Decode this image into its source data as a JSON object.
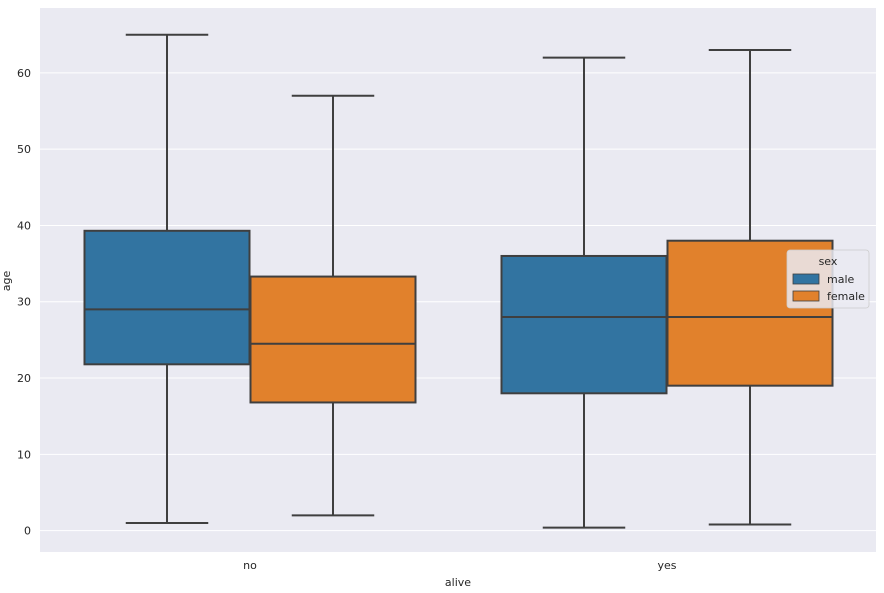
{
  "chart_data": {
    "type": "box",
    "title": "",
    "xlabel": "alive",
    "ylabel": "age",
    "categories": [
      "no",
      "yes"
    ],
    "ylim": [
      -2.8,
      68.5
    ],
    "yticks": [
      0,
      10,
      20,
      30,
      40,
      50,
      60
    ],
    "grid": true,
    "legend": {
      "title": "sex",
      "placement": "right"
    },
    "series": [
      {
        "name": "male",
        "color": "#3274a1",
        "boxes": [
          {
            "category": "no",
            "whislo": 1,
            "q1": 21.8,
            "median": 29,
            "q3": 39.3,
            "whishi": 65
          },
          {
            "category": "yes",
            "whislo": 0.4,
            "q1": 18,
            "median": 28,
            "q3": 36,
            "whishi": 62
          }
        ]
      },
      {
        "name": "female",
        "color": "#e1812c",
        "boxes": [
          {
            "category": "no",
            "whislo": 2,
            "q1": 16.8,
            "median": 24.5,
            "q3": 33.3,
            "whishi": 57
          },
          {
            "category": "yes",
            "whislo": 0.8,
            "q1": 19,
            "median": 28,
            "q3": 38,
            "whishi": 63
          }
        ]
      }
    ]
  }
}
